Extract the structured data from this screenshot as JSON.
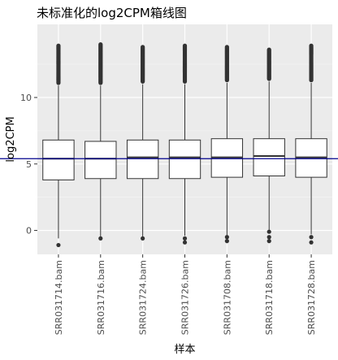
{
  "chart_data": {
    "type": "boxplot",
    "title": "未标准化的log2CPM箱线图",
    "xlabel": "样本",
    "ylabel": "log2CPM",
    "ylim": [
      -1.8,
      15.5
    ],
    "yticks": [
      0,
      5,
      10
    ],
    "grid": true,
    "reference_line": {
      "y": 5.4,
      "color": "#00008b"
    },
    "categories": [
      "SRR031714.bam",
      "SRR031716.bam",
      "SRR031724.bam",
      "SRR031726.bam",
      "SRR031708.bam",
      "SRR031718.bam",
      "SRR031728.bam"
    ],
    "boxes": [
      {
        "q1": 3.8,
        "median": 5.4,
        "q3": 6.8,
        "whisker_low": -0.6,
        "whisker_high": 10.9,
        "outliers_low": [
          -1.1
        ],
        "outliers_high_from": 11.1,
        "outliers_high_to": 13.9
      },
      {
        "q1": 3.9,
        "median": 5.4,
        "q3": 6.7,
        "whisker_low": -0.5,
        "whisker_high": 10.9,
        "outliers_low": [
          -0.6
        ],
        "outliers_high_from": 11.1,
        "outliers_high_to": 14.0
      },
      {
        "q1": 3.9,
        "median": 5.5,
        "q3": 6.8,
        "whisker_low": -0.5,
        "whisker_high": 11.0,
        "outliers_low": [
          -0.6
        ],
        "outliers_high_from": 11.2,
        "outliers_high_to": 13.8
      },
      {
        "q1": 3.9,
        "median": 5.5,
        "q3": 6.8,
        "whisker_low": -0.4,
        "whisker_high": 11.0,
        "outliers_low": [
          -0.6,
          -0.9
        ],
        "outliers_high_from": 11.2,
        "outliers_high_to": 13.9
      },
      {
        "q1": 4.0,
        "median": 5.5,
        "q3": 6.9,
        "whisker_low": -0.4,
        "whisker_high": 11.1,
        "outliers_low": [
          -0.5,
          -0.8
        ],
        "outliers_high_from": 11.3,
        "outliers_high_to": 13.8
      },
      {
        "q1": 4.1,
        "median": 5.6,
        "q3": 6.9,
        "whisker_low": 0.0,
        "whisker_high": 11.2,
        "outliers_low": [
          -0.1,
          -0.5,
          -0.8
        ],
        "outliers_high_from": 11.4,
        "outliers_high_to": 13.6
      },
      {
        "q1": 4.0,
        "median": 5.5,
        "q3": 6.9,
        "whisker_low": -0.3,
        "whisker_high": 11.1,
        "outliers_low": [
          -0.5,
          -0.9
        ],
        "outliers_high_from": 11.3,
        "outliers_high_to": 13.9
      }
    ]
  },
  "colors": {
    "panel": "#ebebeb",
    "grid_major": "#ffffff",
    "grid_minor": "#f5f5f5",
    "box_fill": "#ffffff",
    "box_stroke": "#333333",
    "point": "#333333",
    "reference_line": "#00008b"
  }
}
